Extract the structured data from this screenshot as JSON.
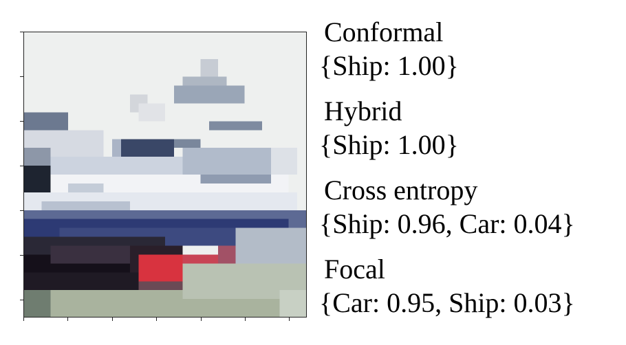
{
  "image": {
    "subject": "ship",
    "accent_colors": {
      "sky": "#eef0ef",
      "hull_dark": "#15101a",
      "hull_blue": "#2d3a74",
      "stripe_red": "#d8333f",
      "deck_white": "#f2f3f6",
      "water": "#a9b39e"
    }
  },
  "methods": [
    {
      "name": "Conformal",
      "prediction": "{Ship: 1.00}"
    },
    {
      "name": "Hybrid",
      "prediction": "{Ship: 1.00}"
    },
    {
      "name": "Cross entropy",
      "prediction": "{Ship: 0.96, Car: 0.04}"
    },
    {
      "name": "Focal",
      "prediction": "{Car: 0.95, Ship: 0.03}"
    }
  ]
}
